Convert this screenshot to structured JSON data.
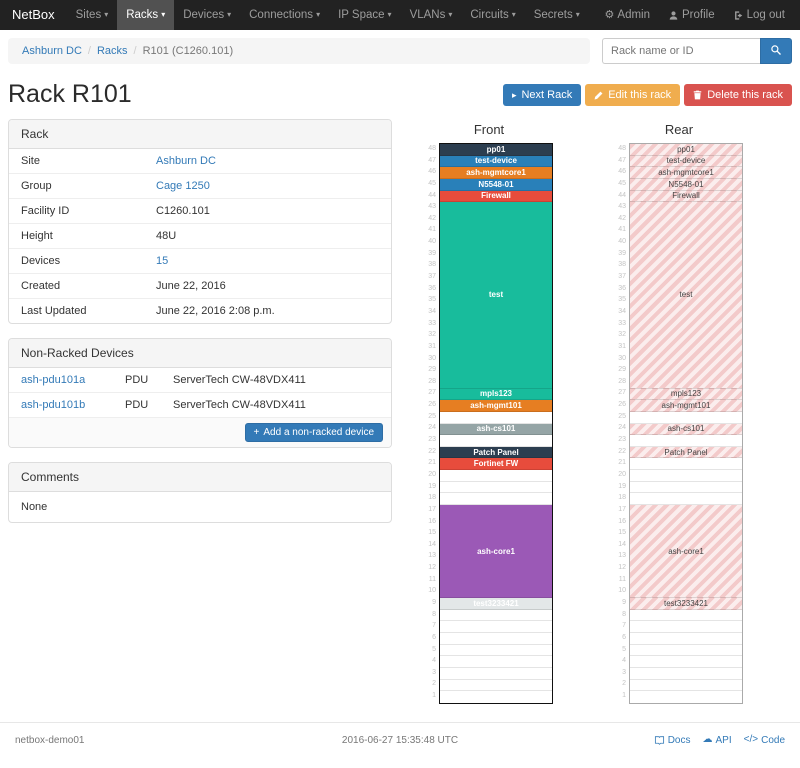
{
  "navbar": {
    "brand": "NetBox",
    "items": [
      {
        "label": "Sites",
        "active": false
      },
      {
        "label": "Racks",
        "active": true
      },
      {
        "label": "Devices",
        "active": false
      },
      {
        "label": "Connections",
        "active": false
      },
      {
        "label": "IP Space",
        "active": false
      },
      {
        "label": "VLANs",
        "active": false
      },
      {
        "label": "Circuits",
        "active": false
      },
      {
        "label": "Secrets",
        "active": false
      }
    ],
    "right": [
      {
        "label": "Admin",
        "icon": "gear"
      },
      {
        "label": "Profile",
        "icon": "user"
      },
      {
        "label": "Log out",
        "icon": "logout"
      }
    ]
  },
  "breadcrumb": {
    "items": [
      "Ashburn DC",
      "Racks",
      "R101 (C1260.101)"
    ]
  },
  "search": {
    "placeholder": "Rack name or ID"
  },
  "actions": {
    "next": "Next Rack",
    "edit": "Edit this rack",
    "delete": "Delete this rack"
  },
  "page_title": "Rack R101",
  "rack_panel": {
    "title": "Rack",
    "rows": [
      {
        "label": "Site",
        "value": "Ashburn DC",
        "link": true
      },
      {
        "label": "Group",
        "value": "Cage 1250",
        "link": true
      },
      {
        "label": "Facility ID",
        "value": "C1260.101",
        "link": false
      },
      {
        "label": "Height",
        "value": "48U",
        "link": false
      },
      {
        "label": "Devices",
        "value": "15",
        "link": true
      },
      {
        "label": "Created",
        "value": "June 22, 2016",
        "link": false
      },
      {
        "label": "Last Updated",
        "value": "June 22, 2016 2:08 p.m.",
        "link": false
      }
    ]
  },
  "nonracked_panel": {
    "title": "Non-Racked Devices",
    "devices": [
      {
        "name": "ash-pdu101a",
        "role": "PDU",
        "type": "ServerTech CW-48VDX411"
      },
      {
        "name": "ash-pdu101b",
        "role": "PDU",
        "type": "ServerTech CW-48VDX411"
      }
    ],
    "add_button": "Add a non-racked device"
  },
  "comments_panel": {
    "title": "Comments",
    "body": "None"
  },
  "elevations": {
    "front_title": "Front",
    "rear_title": "Rear",
    "units_total": 48,
    "front_devices": [
      {
        "name": "pp01",
        "u": 48,
        "h": 1,
        "color": "#2c3e50"
      },
      {
        "name": "test-device",
        "u": 47,
        "h": 1,
        "color": "#2980b9"
      },
      {
        "name": "ash-mgmtcore1",
        "u": 46,
        "h": 1,
        "color": "#e67e22"
      },
      {
        "name": "N5548-01",
        "u": 45,
        "h": 1,
        "color": "#2980b9"
      },
      {
        "name": "Firewall",
        "u": 44,
        "h": 1,
        "color": "#e74c3c"
      },
      {
        "name": "test",
        "u": 43,
        "h": 16,
        "color": "#18bc9c"
      },
      {
        "name": "mpls123",
        "u": 27,
        "h": 1,
        "color": "#18bc9c"
      },
      {
        "name": "ash-mgmt101",
        "u": 26,
        "h": 1,
        "color": "#e67e22"
      },
      {
        "name": "ash-cs101",
        "u": 24,
        "h": 1,
        "color": "#95a5a6"
      },
      {
        "name": "Patch Panel",
        "u": 22,
        "h": 1,
        "color": "#2c3e50"
      },
      {
        "name": "Fortinet FW",
        "u": 21,
        "h": 1,
        "color": "#e74c3c"
      },
      {
        "name": "ash-core1",
        "u": 17,
        "h": 8,
        "color": "#9b59b6"
      },
      {
        "name": "test3233421",
        "u": 9,
        "h": 1,
        "color": "#e3e7e8",
        "text": "#ffffff"
      }
    ],
    "rear_devices": [
      {
        "name": "pp01",
        "u": 48,
        "h": 1
      },
      {
        "name": "test-device",
        "u": 47,
        "h": 1
      },
      {
        "name": "ash-mgmtcore1",
        "u": 46,
        "h": 1
      },
      {
        "name": "N5548-01",
        "u": 45,
        "h": 1
      },
      {
        "name": "Firewall",
        "u": 44,
        "h": 1
      },
      {
        "name": "test",
        "u": 43,
        "h": 16
      },
      {
        "name": "mpls123",
        "u": 27,
        "h": 1
      },
      {
        "name": "ash-mgmt101",
        "u": 26,
        "h": 1
      },
      {
        "name": "ash-cs101",
        "u": 24,
        "h": 1
      },
      {
        "name": "Patch Panel",
        "u": 22,
        "h": 1
      },
      {
        "name": "ash-core1",
        "u": 17,
        "h": 8
      },
      {
        "name": "test3233421",
        "u": 9,
        "h": 1
      }
    ]
  },
  "footer": {
    "hostname": "netbox-demo01",
    "timestamp": "2016-06-27 15:35:48 UTC",
    "links": [
      {
        "label": "Docs",
        "icon": "book"
      },
      {
        "label": "API",
        "icon": "cloud"
      },
      {
        "label": "Code",
        "icon": "code"
      }
    ]
  },
  "colors": {
    "accent": "#337ab7",
    "warning": "#f0ad4e",
    "danger": "#d9534f"
  }
}
